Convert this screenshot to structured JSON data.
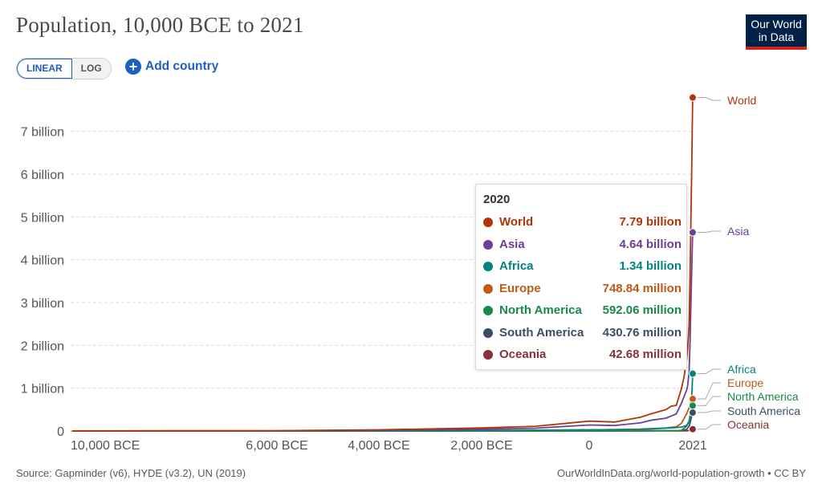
{
  "header": {
    "title": "Population, 10,000 BCE to 2021",
    "logo_line1": "Our World",
    "logo_line2": "in Data"
  },
  "controls": {
    "linear_label": "LINEAR",
    "log_label": "LOG",
    "active_scale": "linear",
    "add_country_label": "Add country",
    "add_icon": "plus-circle-icon"
  },
  "tooltip": {
    "year": "2020",
    "rows": [
      {
        "name": "World",
        "value": "7.79 billion",
        "color": "#b13507"
      },
      {
        "name": "Asia",
        "value": "4.64 billion",
        "color": "#6d3e91"
      },
      {
        "name": "Africa",
        "value": "1.34 billion",
        "color": "#00847e"
      },
      {
        "name": "Europe",
        "value": "748.84 million",
        "color": "#c05917"
      },
      {
        "name": "North America",
        "value": "592.06 million",
        "color": "#18894a"
      },
      {
        "name": "South America",
        "value": "430.76 million",
        "color": "#3c4e66"
      },
      {
        "name": "Oceania",
        "value": "42.68 million",
        "color": "#883039"
      }
    ]
  },
  "footer": {
    "source": "Source: Gapminder (v6), HYDE (v3.2), UN (2019)",
    "url": "OurWorldInData.org/world-population-growth • CC BY"
  },
  "chart_data": {
    "type": "line",
    "title": "Population, 10,000 BCE to 2021",
    "xlim": [
      -10000,
      2021
    ],
    "ylim": [
      0,
      7800000000
    ],
    "yticks": [
      {
        "value": 0,
        "label": "0"
      },
      {
        "value": 1000000000,
        "label": "1 billion"
      },
      {
        "value": 2000000000,
        "label": "2 billion"
      },
      {
        "value": 3000000000,
        "label": "3 billion"
      },
      {
        "value": 4000000000,
        "label": "4 billion"
      },
      {
        "value": 5000000000,
        "label": "5 billion"
      },
      {
        "value": 6000000000,
        "label": "6 billion"
      },
      {
        "value": 7000000000,
        "label": "7 billion"
      }
    ],
    "xticks": [
      {
        "value": -10000,
        "label": "10,000 BCE"
      },
      {
        "value": -6000,
        "label": "6,000 BCE"
      },
      {
        "value": -4000,
        "label": "4,000 BCE"
      },
      {
        "value": -2000,
        "label": "2,000 BCE"
      },
      {
        "value": 0,
        "label": "0"
      },
      {
        "value": 2021,
        "label": "2021"
      }
    ],
    "grid": true,
    "series": [
      {
        "name": "World",
        "color": "#b13507",
        "points": [
          [
            -10000,
            4400000
          ],
          [
            -8000,
            5000000
          ],
          [
            -6000,
            8000000
          ],
          [
            -4000,
            28000000
          ],
          [
            -2000,
            72000000
          ],
          [
            -1000,
            110000000
          ],
          [
            0,
            230000000
          ],
          [
            500,
            210000000
          ],
          [
            1000,
            320000000
          ],
          [
            1200,
            400000000
          ],
          [
            1500,
            500000000
          ],
          [
            1600,
            580000000
          ],
          [
            1700,
            600000000
          ],
          [
            1800,
            990000000
          ],
          [
            1850,
            1260000000
          ],
          [
            1900,
            1650000000
          ],
          [
            1920,
            1910000000
          ],
          [
            1950,
            2500000000
          ],
          [
            1970,
            3700000000
          ],
          [
            1990,
            5300000000
          ],
          [
            2000,
            6150000000
          ],
          [
            2010,
            6960000000
          ],
          [
            2020,
            7790000000
          ]
        ]
      },
      {
        "name": "Asia",
        "color": "#6d3e91",
        "points": [
          [
            -10000,
            2500000
          ],
          [
            -6000,
            4500000
          ],
          [
            -4000,
            16000000
          ],
          [
            -2000,
            42000000
          ],
          [
            -1000,
            65000000
          ],
          [
            0,
            140000000
          ],
          [
            500,
            130000000
          ],
          [
            1000,
            190000000
          ],
          [
            1200,
            250000000
          ],
          [
            1500,
            300000000
          ],
          [
            1600,
            350000000
          ],
          [
            1700,
            400000000
          ],
          [
            1800,
            650000000
          ],
          [
            1850,
            800000000
          ],
          [
            1900,
            950000000
          ],
          [
            1920,
            1050000000
          ],
          [
            1950,
            1400000000
          ],
          [
            1970,
            2140000000
          ],
          [
            1990,
            3220000000
          ],
          [
            2000,
            3740000000
          ],
          [
            2010,
            4210000000
          ],
          [
            2020,
            4640000000
          ]
        ]
      },
      {
        "name": "Africa",
        "color": "#00847e",
        "points": [
          [
            -10000,
            500000
          ],
          [
            -4000,
            4000000
          ],
          [
            -2000,
            12000000
          ],
          [
            0,
            25000000
          ],
          [
            1000,
            45000000
          ],
          [
            1500,
            70000000
          ],
          [
            1700,
            80000000
          ],
          [
            1800,
            90000000
          ],
          [
            1900,
            130000000
          ],
          [
            1950,
            228000000
          ],
          [
            1970,
            365000000
          ],
          [
            1990,
            630000000
          ],
          [
            2000,
            810000000
          ],
          [
            2010,
            1040000000
          ],
          [
            2020,
            1340000000
          ]
        ]
      },
      {
        "name": "Europe",
        "color": "#c05917",
        "points": [
          [
            -10000,
            300000
          ],
          [
            -4000,
            3000000
          ],
          [
            -2000,
            10000000
          ],
          [
            0,
            30000000
          ],
          [
            1000,
            30000000
          ],
          [
            1500,
            70000000
          ],
          [
            1700,
            100000000
          ],
          [
            1800,
            180000000
          ],
          [
            1900,
            400000000
          ],
          [
            1950,
            549000000
          ],
          [
            1970,
            657000000
          ],
          [
            1990,
            721000000
          ],
          [
            2000,
            726000000
          ],
          [
            2010,
            736000000
          ],
          [
            2020,
            748840000
          ]
        ]
      },
      {
        "name": "North America",
        "color": "#18894a",
        "points": [
          [
            -10000,
            200000
          ],
          [
            -2000,
            1500000
          ],
          [
            0,
            3000000
          ],
          [
            1000,
            5000000
          ],
          [
            1500,
            8000000
          ],
          [
            1700,
            7000000
          ],
          [
            1800,
            15000000
          ],
          [
            1900,
            110000000
          ],
          [
            1950,
            218000000
          ],
          [
            1970,
            320000000
          ],
          [
            1990,
            420000000
          ],
          [
            2000,
            486000000
          ],
          [
            2010,
            545000000
          ],
          [
            2020,
            592060000
          ]
        ]
      },
      {
        "name": "South America",
        "color": "#3c4e66",
        "points": [
          [
            -10000,
            100000
          ],
          [
            -2000,
            1000000
          ],
          [
            0,
            2000000
          ],
          [
            1000,
            4000000
          ],
          [
            1500,
            10000000
          ],
          [
            1700,
            6000000
          ],
          [
            1800,
            9000000
          ],
          [
            1900,
            38000000
          ],
          [
            1950,
            114000000
          ],
          [
            1970,
            192000000
          ],
          [
            1990,
            297000000
          ],
          [
            2000,
            349000000
          ],
          [
            2010,
            394000000
          ],
          [
            2020,
            430760000
          ]
        ]
      },
      {
        "name": "Oceania",
        "color": "#883039",
        "points": [
          [
            -10000,
            100000
          ],
          [
            0,
            1000000
          ],
          [
            1000,
            1500000
          ],
          [
            1500,
            2000000
          ],
          [
            1800,
            2000000
          ],
          [
            1900,
            6000000
          ],
          [
            1950,
            12900000
          ],
          [
            1970,
            19700000
          ],
          [
            1990,
            27000000
          ],
          [
            2000,
            31000000
          ],
          [
            2010,
            37000000
          ],
          [
            2020,
            42680000
          ]
        ]
      }
    ],
    "end_labels": [
      {
        "name": "World",
        "value": 7790000000
      },
      {
        "name": "Asia",
        "value": 4640000000
      },
      {
        "name": "Africa",
        "value": 1340000000
      },
      {
        "name": "Europe",
        "value": 748840000
      },
      {
        "name": "North America",
        "value": 592060000
      },
      {
        "name": "South America",
        "value": 430760000
      },
      {
        "name": "Oceania",
        "value": 42680000
      }
    ]
  }
}
